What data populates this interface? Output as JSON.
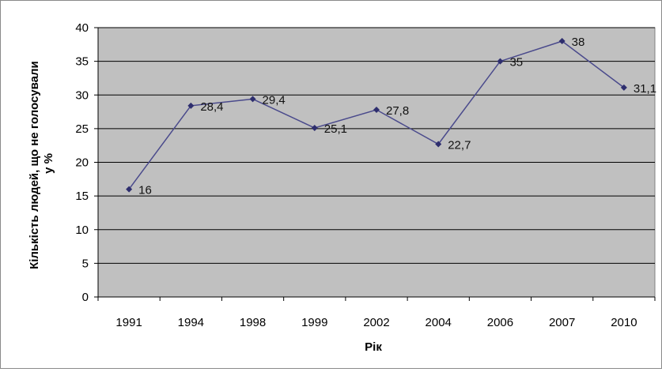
{
  "chart_data": {
    "type": "line",
    "title": "",
    "xlabel": "Рік",
    "ylabel": "Кількість людей, що не голосували у %",
    "ylabel_lines": [
      "Кількість людей, що не голосували",
      "у %"
    ],
    "categories": [
      "1991",
      "1994",
      "1998",
      "1999",
      "2002",
      "2004",
      "2006",
      "2007",
      "2010"
    ],
    "series": [
      {
        "values": [
          16,
          28.4,
          29.4,
          25.1,
          27.8,
          22.7,
          35,
          38,
          31.1
        ],
        "data_labels": [
          "16",
          "28,4",
          "29,4",
          "25,1",
          "27,8",
          "22,7",
          "35",
          "38",
          "31,1"
        ]
      }
    ],
    "ylim": [
      0,
      40
    ],
    "yticks": [
      0,
      5,
      10,
      15,
      20,
      25,
      30,
      35,
      40
    ],
    "ytick_labels": [
      "0",
      "5",
      "10",
      "15",
      "20",
      "25",
      "30",
      "35",
      "40"
    ],
    "grid": true,
    "legend": "none",
    "colors": {
      "plot_background": "#c0c0c0",
      "gridline": "#000000",
      "line": "#4a4a8c",
      "marker": "#2e2e6e"
    }
  }
}
